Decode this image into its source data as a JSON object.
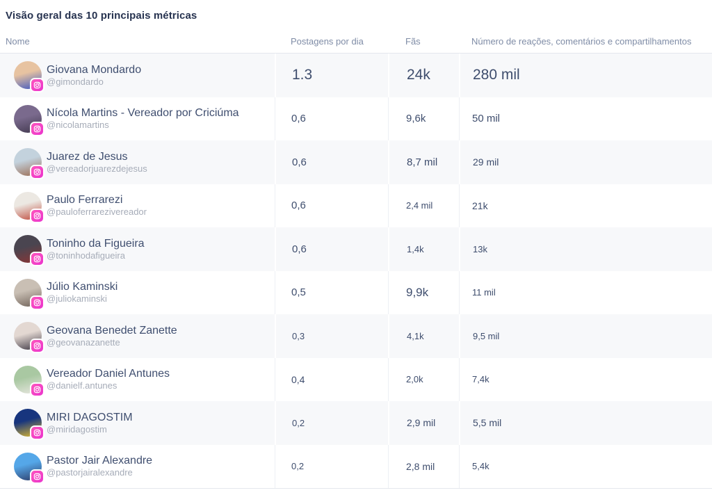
{
  "title": "Visão geral das 10 principais métricas",
  "columns": {
    "name": "Nome",
    "posts": "Postagens por dia",
    "fans": "Fãs",
    "reactions": "Número de reações, comentários e compartilhamentos"
  },
  "colors": {
    "title_text": "#273350",
    "header_text": "#7f8ca6",
    "name_text": "#3f4e6f",
    "handle_text": "#a6acb8",
    "value_text": "#3e4d6d",
    "row_alt_bg": "#f7f8fa",
    "divider_on_white": "#edeff4",
    "divider_on_gray": "#ffffff",
    "header_border": "#e4e7ed",
    "instagram_badge_pink": "#ea34cd"
  },
  "icons": {
    "avatar_badge": "instagram-icon"
  },
  "rows": [
    {
      "name": "Giovana Mondardo",
      "handle": "@gimondardo",
      "posts": {
        "text": "1.3",
        "size": 21
      },
      "fans": {
        "text": "24k",
        "size": 21
      },
      "reactions": {
        "text": "280 mil",
        "size": 21
      },
      "avatar": [
        "#e7c3a1",
        "#3b55c0"
      ]
    },
    {
      "name": "Nícola Martins - Vereador por Criciúma",
      "handle": "@nicolamartins",
      "posts": {
        "text": "0,6",
        "size": 15
      },
      "fans": {
        "text": "9,6k",
        "size": 15
      },
      "reactions": {
        "text": "50 mil",
        "size": 15
      },
      "avatar": [
        "#7a6a8d",
        "#41384e"
      ]
    },
    {
      "name": "Juarez de Jesus",
      "handle": "@vereadorjuarezdejesus",
      "posts": {
        "text": "0,6",
        "size": 15
      },
      "fans": {
        "text": "8,7 mil",
        "size": 15
      },
      "reactions": {
        "text": "29 mil",
        "size": 14
      },
      "avatar": [
        "#c3d2dd",
        "#9a6a50"
      ]
    },
    {
      "name": "Paulo Ferrarezi",
      "handle": "@pauloferrarezivereador",
      "posts": {
        "text": "0,6",
        "size": 15
      },
      "fans": {
        "text": "2,4 mil",
        "size": 13
      },
      "reactions": {
        "text": "21k",
        "size": 14
      },
      "avatar": [
        "#ece8e2",
        "#bf4a3c"
      ]
    },
    {
      "name": "Toninho da Figueira",
      "handle": "@toninhodafigueira",
      "posts": {
        "text": "0,6",
        "size": 15
      },
      "fans": {
        "text": "1,4k",
        "size": 13
      },
      "reactions": {
        "text": "13k",
        "size": 13
      },
      "avatar": [
        "#4a4550",
        "#8c3535"
      ]
    },
    {
      "name": "Júlio Kaminski",
      "handle": "@juliokaminski",
      "posts": {
        "text": "0,5",
        "size": 15
      },
      "fans": {
        "text": "9,9k",
        "size": 17
      },
      "reactions": {
        "text": "11 mil",
        "size": 13
      },
      "avatar": [
        "#c9bfb4",
        "#6e6057"
      ]
    },
    {
      "name": "Geovana Benedet Zanette",
      "handle": "@geovanazanette",
      "posts": {
        "text": "0,3",
        "size": 13
      },
      "fans": {
        "text": "4,1k",
        "size": 13
      },
      "reactions": {
        "text": "9,5 mil",
        "size": 13
      },
      "avatar": [
        "#e3d8d2",
        "#3c3642"
      ]
    },
    {
      "name": "Vereador Daniel Antunes",
      "handle": "@danielf.antunes",
      "posts": {
        "text": "0,4",
        "size": 14
      },
      "fans": {
        "text": "2,0k",
        "size": 13
      },
      "reactions": {
        "text": "7,4k",
        "size": 13
      },
      "avatar": [
        "#a9c8a2",
        "#e9e7e1"
      ]
    },
    {
      "name": "MIRI DAGOSTIM",
      "handle": "@miridagostim",
      "posts": {
        "text": "0,2",
        "size": 13
      },
      "fans": {
        "text": "2,9 mil",
        "size": 14
      },
      "reactions": {
        "text": "5,5 mil",
        "size": 14
      },
      "avatar": [
        "#17357e",
        "#e3bd2e"
      ]
    },
    {
      "name": "Pastor Jair Alexandre",
      "handle": "@pastorjairalexandre",
      "posts": {
        "text": "0,2",
        "size": 13
      },
      "fans": {
        "text": "2,8 mil",
        "size": 14
      },
      "reactions": {
        "text": "5,4k",
        "size": 13
      },
      "avatar": [
        "#55a7e8",
        "#2c3a66"
      ]
    }
  ]
}
